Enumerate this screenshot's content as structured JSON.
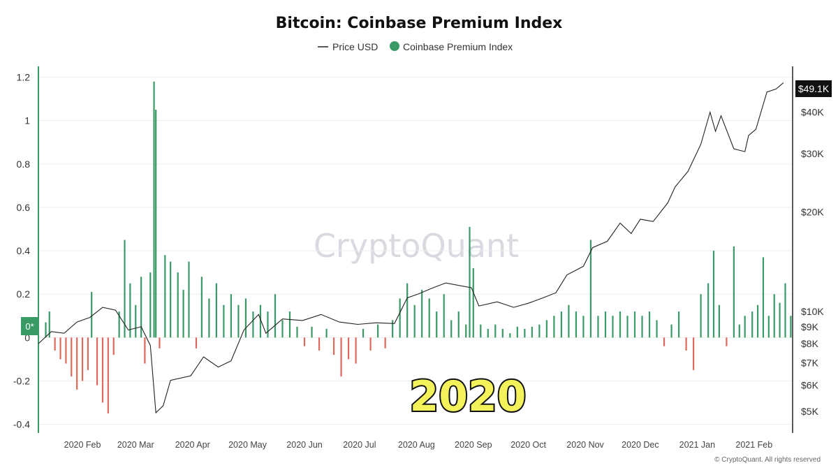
{
  "chart_data": {
    "type": "bar",
    "title": "Bitcoin: Coinbase Premium Index",
    "legend": [
      {
        "name": "Price USD",
        "color": "#222222",
        "marker": "line"
      },
      {
        "name": "Coinbase Premium Index",
        "color": "#3a9a66",
        "marker": "dot"
      }
    ],
    "legend_placement": "top-center",
    "grid": true,
    "colors": {
      "positive": "#3a9a66",
      "negative": "#e0675c",
      "price_line": "#222222",
      "left_axis": "#3a9a66",
      "right_axis": "#222222"
    },
    "y_left": {
      "ticks": [
        1.2,
        1,
        0.8,
        0.6,
        0.4,
        0.2,
        0,
        -0.2,
        -0.4
      ],
      "tick_labels": [
        "1.2",
        "1",
        "0.8",
        "0.6",
        "0.4",
        "0.2",
        "0",
        "-0.2",
        "-0.4"
      ],
      "ylim": [
        -0.44,
        1.25
      ],
      "zero_marker": "0*"
    },
    "y_right": {
      "scale": "log",
      "ticks": [
        40000,
        30000,
        20000,
        10000,
        9000,
        8000,
        7000,
        6000,
        5000
      ],
      "tick_labels": [
        "$40K",
        "$30K",
        "$20K",
        "$10K",
        "$9K",
        "$8K",
        "$7K",
        "$6K",
        "$5K"
      ],
      "ylim": [
        4300,
        55000
      ],
      "last_value_label": "$49.1K"
    },
    "x_axis": {
      "start": "2020-01-08",
      "end": "2021-02-22",
      "ticks": [
        "2020-02-01",
        "2020-03-01",
        "2020-04-01",
        "2020-05-01",
        "2020-06-01",
        "2020-07-01",
        "2020-08-01",
        "2020-09-01",
        "2020-10-01",
        "2020-11-01",
        "2020-12-01",
        "2021-01-01",
        "2021-02-01"
      ],
      "tick_labels": [
        "2020 Feb",
        "2020 Mar",
        "2020 Apr",
        "2020 May",
        "2020 Jun",
        "2020 Jul",
        "2020 Aug",
        "2020 Sep",
        "2020 Oct",
        "2020 Nov",
        "2020 Dec",
        "2021 Jan",
        "2021 Feb"
      ]
    },
    "premium_series": {
      "name": "Coinbase Premium Index",
      "points": [
        [
          "2020-01-12",
          0.07
        ],
        [
          "2020-01-14",
          0.12
        ],
        [
          "2020-01-17",
          -0.06
        ],
        [
          "2020-01-20",
          -0.1
        ],
        [
          "2020-01-23",
          -0.12
        ],
        [
          "2020-01-26",
          -0.18
        ],
        [
          "2020-01-29",
          -0.24
        ],
        [
          "2020-02-01",
          -0.2
        ],
        [
          "2020-02-04",
          -0.15
        ],
        [
          "2020-02-06",
          0.21
        ],
        [
          "2020-02-09",
          -0.22
        ],
        [
          "2020-02-12",
          -0.3
        ],
        [
          "2020-02-15",
          -0.35
        ],
        [
          "2020-02-18",
          -0.08
        ],
        [
          "2020-02-21",
          0.12
        ],
        [
          "2020-02-24",
          0.45
        ],
        [
          "2020-02-27",
          0.25
        ],
        [
          "2020-03-01",
          0.15
        ],
        [
          "2020-03-04",
          0.28
        ],
        [
          "2020-03-06",
          -0.12
        ],
        [
          "2020-03-09",
          0.3
        ],
        [
          "2020-03-11",
          1.18
        ],
        [
          "2020-03-12",
          1.05
        ],
        [
          "2020-03-14",
          -0.05
        ],
        [
          "2020-03-17",
          0.38
        ],
        [
          "2020-03-20",
          0.35
        ],
        [
          "2020-03-24",
          0.3
        ],
        [
          "2020-03-27",
          0.22
        ],
        [
          "2020-03-30",
          0.35
        ],
        [
          "2020-04-03",
          -0.05
        ],
        [
          "2020-04-06",
          0.28
        ],
        [
          "2020-04-10",
          0.18
        ],
        [
          "2020-04-14",
          0.25
        ],
        [
          "2020-04-18",
          0.15
        ],
        [
          "2020-04-22",
          0.2
        ],
        [
          "2020-04-26",
          0.15
        ],
        [
          "2020-04-30",
          0.18
        ],
        [
          "2020-05-04",
          0.12
        ],
        [
          "2020-05-08",
          0.15
        ],
        [
          "2020-05-12",
          0.12
        ],
        [
          "2020-05-16",
          0.2
        ],
        [
          "2020-05-20",
          0.08
        ],
        [
          "2020-05-24",
          0.12
        ],
        [
          "2020-05-28",
          0.05
        ],
        [
          "2020-06-01",
          -0.04
        ],
        [
          "2020-06-05",
          0.05
        ],
        [
          "2020-06-09",
          -0.06
        ],
        [
          "2020-06-13",
          0.04
        ],
        [
          "2020-06-17",
          -0.08
        ],
        [
          "2020-06-21",
          -0.18
        ],
        [
          "2020-06-25",
          -0.1
        ],
        [
          "2020-06-29",
          -0.12
        ],
        [
          "2020-07-03",
          0.04
        ],
        [
          "2020-07-07",
          -0.06
        ],
        [
          "2020-07-11",
          0.06
        ],
        [
          "2020-07-15",
          -0.05
        ],
        [
          "2020-07-19",
          0.08
        ],
        [
          "2020-07-23",
          0.18
        ],
        [
          "2020-07-27",
          0.25
        ],
        [
          "2020-07-31",
          0.15
        ],
        [
          "2020-08-04",
          0.22
        ],
        [
          "2020-08-08",
          0.18
        ],
        [
          "2020-08-12",
          0.12
        ],
        [
          "2020-08-16",
          0.2
        ],
        [
          "2020-08-20",
          0.08
        ],
        [
          "2020-08-24",
          0.12
        ],
        [
          "2020-08-28",
          0.06
        ],
        [
          "2020-08-30",
          0.51
        ],
        [
          "2020-09-01",
          0.32
        ],
        [
          "2020-09-05",
          0.06
        ],
        [
          "2020-09-09",
          0.04
        ],
        [
          "2020-09-13",
          0.06
        ],
        [
          "2020-09-17",
          0.04
        ],
        [
          "2020-09-21",
          0.02
        ],
        [
          "2020-09-25",
          0.05
        ],
        [
          "2020-09-29",
          0.04
        ],
        [
          "2020-10-03",
          0.05
        ],
        [
          "2020-10-07",
          0.06
        ],
        [
          "2020-10-11",
          0.08
        ],
        [
          "2020-10-15",
          0.1
        ],
        [
          "2020-10-19",
          0.12
        ],
        [
          "2020-10-23",
          0.15
        ],
        [
          "2020-10-27",
          0.12
        ],
        [
          "2020-10-31",
          0.1
        ],
        [
          "2020-11-04",
          0.45
        ],
        [
          "2020-11-08",
          0.1
        ],
        [
          "2020-11-12",
          0.12
        ],
        [
          "2020-11-16",
          0.1
        ],
        [
          "2020-11-20",
          0.12
        ],
        [
          "2020-11-24",
          0.1
        ],
        [
          "2020-11-28",
          0.12
        ],
        [
          "2020-12-02",
          0.1
        ],
        [
          "2020-12-06",
          0.12
        ],
        [
          "2020-12-10",
          0.08
        ],
        [
          "2020-12-14",
          -0.04
        ],
        [
          "2020-12-18",
          0.06
        ],
        [
          "2020-12-22",
          0.12
        ],
        [
          "2020-12-26",
          -0.06
        ],
        [
          "2020-12-30",
          -0.15
        ],
        [
          "2021-01-03",
          0.2
        ],
        [
          "2021-01-07",
          0.25
        ],
        [
          "2021-01-10",
          0.4
        ],
        [
          "2021-01-13",
          0.15
        ],
        [
          "2021-01-17",
          -0.04
        ],
        [
          "2021-01-21",
          0.42
        ],
        [
          "2021-01-24",
          0.06
        ],
        [
          "2021-01-27",
          0.1
        ],
        [
          "2021-01-31",
          0.12
        ],
        [
          "2021-02-03",
          0.15
        ],
        [
          "2021-02-06",
          0.37
        ],
        [
          "2021-02-09",
          0.1
        ],
        [
          "2021-02-12",
          0.2
        ],
        [
          "2021-02-15",
          0.16
        ],
        [
          "2021-02-18",
          0.25
        ],
        [
          "2021-02-21",
          0.1
        ]
      ]
    },
    "price_series": {
      "name": "Price USD",
      "points": [
        [
          "2020-01-08",
          8000
        ],
        [
          "2020-01-15",
          8700
        ],
        [
          "2020-01-22",
          8600
        ],
        [
          "2020-01-29",
          9300
        ],
        [
          "2020-02-05",
          9600
        ],
        [
          "2020-02-12",
          10300
        ],
        [
          "2020-02-19",
          10100
        ],
        [
          "2020-02-26",
          8800
        ],
        [
          "2020-03-04",
          9000
        ],
        [
          "2020-03-09",
          7900
        ],
        [
          "2020-03-12",
          4950
        ],
        [
          "2020-03-16",
          5200
        ],
        [
          "2020-03-20",
          6200
        ],
        [
          "2020-03-31",
          6400
        ],
        [
          "2020-04-07",
          7300
        ],
        [
          "2020-04-15",
          6800
        ],
        [
          "2020-04-22",
          7100
        ],
        [
          "2020-04-29",
          8800
        ],
        [
          "2020-05-07",
          9800
        ],
        [
          "2020-05-11",
          8600
        ],
        [
          "2020-05-20",
          9500
        ],
        [
          "2020-05-31",
          9400
        ],
        [
          "2020-06-10",
          9800
        ],
        [
          "2020-06-20",
          9300
        ],
        [
          "2020-06-30",
          9150
        ],
        [
          "2020-07-10",
          9250
        ],
        [
          "2020-07-20",
          9200
        ],
        [
          "2020-07-27",
          11000
        ],
        [
          "2020-08-02",
          11300
        ],
        [
          "2020-08-10",
          11800
        ],
        [
          "2020-08-17",
          12200
        ],
        [
          "2020-08-31",
          11800
        ],
        [
          "2020-09-04",
          10400
        ],
        [
          "2020-09-14",
          10700
        ],
        [
          "2020-09-23",
          10300
        ],
        [
          "2020-10-01",
          10600
        ],
        [
          "2020-10-09",
          11000
        ],
        [
          "2020-10-16",
          11400
        ],
        [
          "2020-10-22",
          12900
        ],
        [
          "2020-10-31",
          13700
        ],
        [
          "2020-11-05",
          15600
        ],
        [
          "2020-11-13",
          16300
        ],
        [
          "2020-11-20",
          18500
        ],
        [
          "2020-11-26",
          17200
        ],
        [
          "2020-12-01",
          19000
        ],
        [
          "2020-12-08",
          18700
        ],
        [
          "2020-12-16",
          21300
        ],
        [
          "2020-12-20",
          23800
        ],
        [
          "2020-12-27",
          26500
        ],
        [
          "2021-01-03",
          32000
        ],
        [
          "2021-01-08",
          40000
        ],
        [
          "2021-01-11",
          35000
        ],
        [
          "2021-01-14",
          39000
        ],
        [
          "2021-01-21",
          31000
        ],
        [
          "2021-01-27",
          30400
        ],
        [
          "2021-01-29",
          34000
        ],
        [
          "2021-02-02",
          35500
        ],
        [
          "2021-02-08",
          46000
        ],
        [
          "2021-02-13",
          47000
        ],
        [
          "2021-02-17",
          49100
        ]
      ]
    },
    "annotations": [
      "2020"
    ]
  },
  "watermark": "CryptoQuant",
  "copyright": "© CryptoQuant. All rights reserved"
}
